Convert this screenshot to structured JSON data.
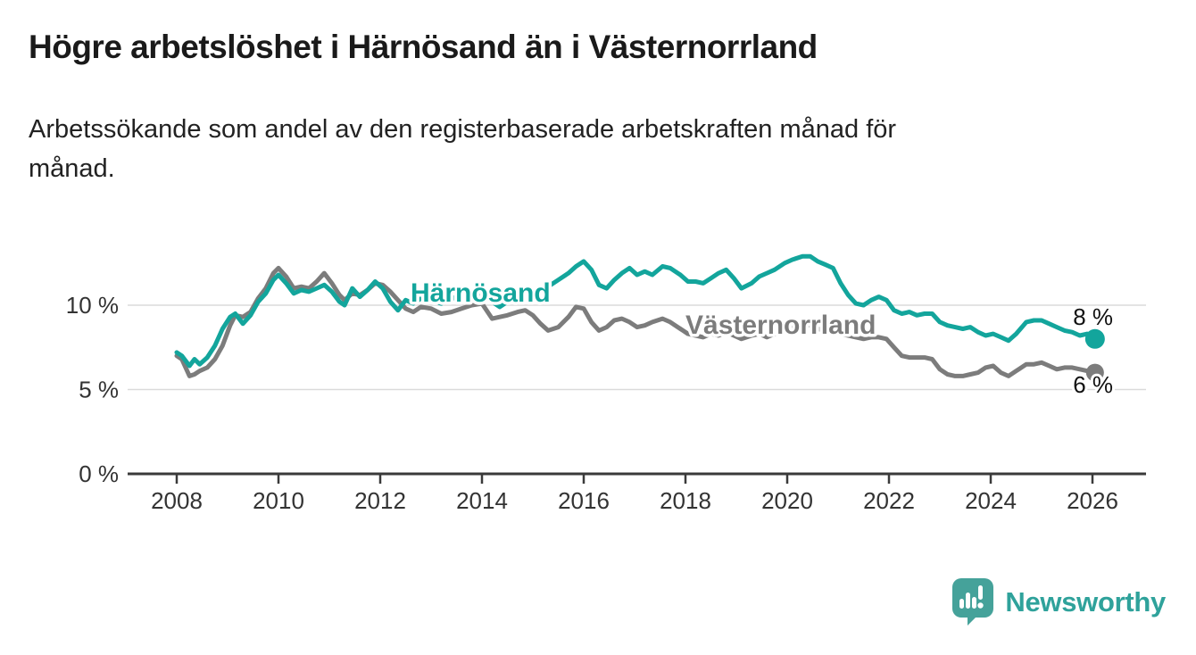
{
  "header": {
    "title": "Högre arbetslöshet i Härnösand än i Västernorrland",
    "subtitle": "Arbetssökande som andel av den registerbaserade arbetskraften månad för månad."
  },
  "chart_data": {
    "type": "line",
    "title": "",
    "xlabel": "",
    "ylabel": "",
    "grid": "horizontal",
    "ylim": [
      0,
      13.5
    ],
    "xlim": [
      2007.8,
      2027.0
    ],
    "x_ticks": [
      2008,
      2010,
      2012,
      2014,
      2016,
      2018,
      2020,
      2022,
      2024,
      2026
    ],
    "y_ticks": [
      {
        "value": 0,
        "label": "0 %"
      },
      {
        "value": 5,
        "label": "5 %"
      },
      {
        "value": 10,
        "label": "10 %"
      }
    ],
    "axis_color": "#3a3a3a",
    "gridline_color": "#dadada",
    "x": [
      2008.0,
      2008.1,
      2008.25,
      2008.35,
      2008.45,
      2008.6,
      2008.75,
      2008.9,
      2009.05,
      2009.15,
      2009.3,
      2009.45,
      2009.6,
      2009.75,
      2009.9,
      2010.0,
      2010.15,
      2010.3,
      2010.45,
      2010.6,
      2010.75,
      2010.9,
      2011.05,
      2011.2,
      2011.3,
      2011.45,
      2011.6,
      2011.75,
      2011.9,
      2012.05,
      2012.2,
      2012.35,
      2012.5,
      2012.65,
      2012.8,
      2013.0,
      2013.2,
      2013.4,
      2013.6,
      2013.8,
      2014.0,
      2014.2,
      2014.35,
      2014.5,
      2014.7,
      2014.85,
      2015.0,
      2015.15,
      2015.3,
      2015.5,
      2015.7,
      2015.85,
      2016.0,
      2016.15,
      2016.3,
      2016.45,
      2016.6,
      2016.75,
      2016.9,
      2017.05,
      2017.2,
      2017.35,
      2017.55,
      2017.7,
      2017.9,
      2018.05,
      2018.2,
      2018.35,
      2018.5,
      2018.65,
      2018.8,
      2018.95,
      2019.1,
      2019.3,
      2019.45,
      2019.6,
      2019.75,
      2019.95,
      2020.1,
      2020.3,
      2020.45,
      2020.6,
      2020.75,
      2020.9,
      2021.05,
      2021.2,
      2021.35,
      2021.5,
      2021.65,
      2021.8,
      2021.95,
      2022.1,
      2022.25,
      2022.4,
      2022.55,
      2022.7,
      2022.85,
      2023.0,
      2023.15,
      2023.3,
      2023.45,
      2023.6,
      2023.75,
      2023.9,
      2024.05,
      2024.2,
      2024.35,
      2024.5,
      2024.7,
      2024.85,
      2025.0,
      2025.15,
      2025.3,
      2025.45,
      2025.6,
      2025.75,
      2025.9,
      2026.05
    ],
    "series": [
      {
        "name": "Härnösand",
        "color": "#13a59c",
        "end_label": "8 %",
        "end_value": 8,
        "values": [
          7.2,
          7.0,
          6.4,
          6.8,
          6.5,
          6.9,
          7.6,
          8.6,
          9.3,
          9.5,
          8.9,
          9.4,
          10.2,
          10.7,
          11.5,
          11.8,
          11.3,
          10.7,
          10.9,
          10.8,
          11.0,
          11.2,
          10.8,
          10.2,
          10.0,
          11.0,
          10.5,
          10.9,
          11.4,
          11.0,
          10.2,
          9.7,
          10.3,
          10.1,
          10.4,
          10.3,
          10.1,
          10.5,
          10.2,
          10.5,
          10.6,
          10.2,
          9.9,
          10.2,
          10.5,
          10.7,
          10.8,
          10.7,
          11.1,
          11.5,
          11.9,
          12.3,
          12.6,
          12.1,
          11.2,
          11.0,
          11.5,
          11.9,
          12.2,
          11.8,
          12.0,
          11.8,
          12.3,
          12.2,
          11.8,
          11.4,
          11.4,
          11.3,
          11.6,
          11.9,
          12.1,
          11.6,
          11.0,
          11.3,
          11.7,
          11.9,
          12.1,
          12.5,
          12.7,
          12.9,
          12.9,
          12.6,
          12.4,
          12.2,
          11.3,
          10.6,
          10.1,
          10.0,
          10.3,
          10.5,
          10.3,
          9.7,
          9.5,
          9.6,
          9.4,
          9.5,
          9.5,
          9.0,
          8.8,
          8.7,
          8.6,
          8.7,
          8.4,
          8.2,
          8.3,
          8.1,
          7.9,
          8.3,
          9.0,
          9.1,
          9.1,
          8.9,
          8.7,
          8.5,
          8.4,
          8.2,
          8.3,
          8.0
        ]
      },
      {
        "name": "Västernorrland",
        "color": "#7c7c7c",
        "end_label": "6 %",
        "end_value": 6,
        "values": [
          7.0,
          6.8,
          5.8,
          5.9,
          6.1,
          6.3,
          6.8,
          7.6,
          8.8,
          9.4,
          9.3,
          9.6,
          10.4,
          11.0,
          11.9,
          12.2,
          11.7,
          11.0,
          11.1,
          11.0,
          11.4,
          11.9,
          11.3,
          10.6,
          10.3,
          10.7,
          10.6,
          10.9,
          11.3,
          11.2,
          10.8,
          10.3,
          9.8,
          9.6,
          9.9,
          9.8,
          9.5,
          9.6,
          9.8,
          10.0,
          10.1,
          9.2,
          9.3,
          9.4,
          9.6,
          9.7,
          9.4,
          8.9,
          8.5,
          8.7,
          9.3,
          9.9,
          9.8,
          9.0,
          8.5,
          8.7,
          9.1,
          9.2,
          9.0,
          8.7,
          8.8,
          9.0,
          9.2,
          9.0,
          8.6,
          8.3,
          8.2,
          8.1,
          8.3,
          8.2,
          8.4,
          8.2,
          8.0,
          8.2,
          8.3,
          8.1,
          8.3,
          8.5,
          8.7,
          8.9,
          8.8,
          8.6,
          8.5,
          8.4,
          8.3,
          8.2,
          8.1,
          8.0,
          8.1,
          8.1,
          8.0,
          7.5,
          7.0,
          6.9,
          6.9,
          6.9,
          6.8,
          6.2,
          5.9,
          5.8,
          5.8,
          5.9,
          6.0,
          6.3,
          6.4,
          6.0,
          5.8,
          6.1,
          6.5,
          6.5,
          6.6,
          6.4,
          6.2,
          6.3,
          6.3,
          6.2,
          6.1,
          6.0
        ]
      }
    ],
    "legend_position": "inline-labels"
  },
  "footer": {
    "brand": "Newsworthy"
  }
}
